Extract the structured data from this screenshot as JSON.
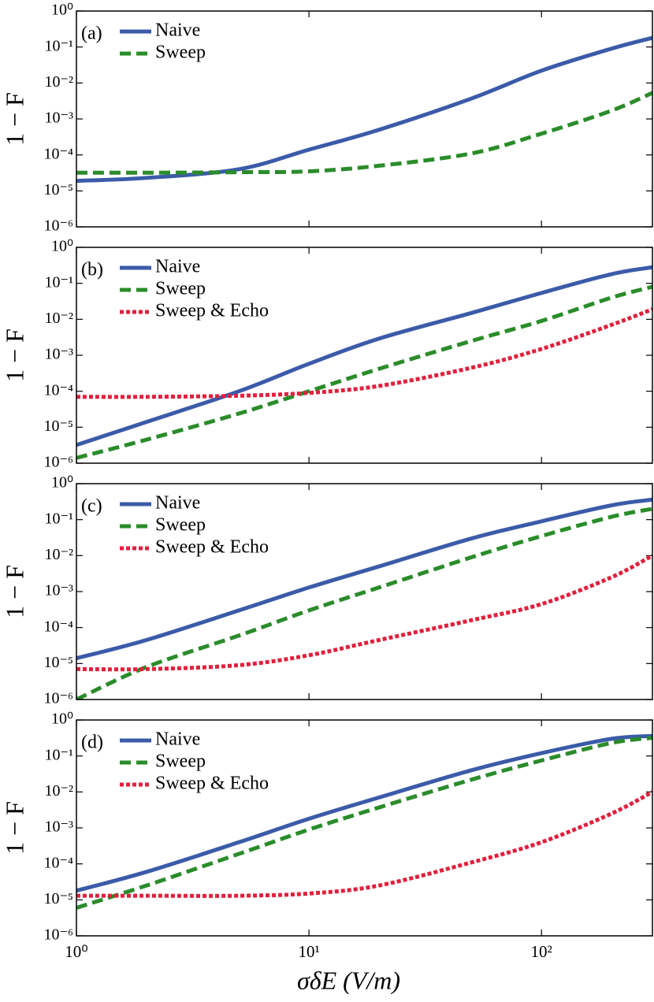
{
  "chart_data": [
    {
      "type": "line",
      "panel_label": "(a)",
      "ylabel": "1 − F",
      "log_x": true,
      "log_y": true,
      "legend": "upper left",
      "x": [
        1,
        2,
        5,
        10,
        20,
        50,
        100,
        200,
        300
      ],
      "series": [
        {
          "name": "Naive",
          "color": "#3b5ba9",
          "style": "solid",
          "values": [
            1.9e-05,
            2.3e-05,
            4e-05,
            0.00014,
            0.0005,
            0.0037,
            0.022,
            0.09,
            0.18
          ]
        },
        {
          "name": "Sweep",
          "color": "#2a8c2a",
          "style": "dashed",
          "values": [
            3.2e-05,
            3.2e-05,
            3.3e-05,
            3.5e-05,
            5e-05,
            0.00011,
            0.00039,
            0.0017,
            0.0053
          ]
        }
      ],
      "xlim": [
        1,
        300
      ],
      "xticks": [
        1,
        10,
        100
      ],
      "ylim": [
        1e-06,
        1
      ],
      "yticks": [
        {
          "value": 1e-06,
          "label": "10⁻⁶"
        },
        {
          "value": 1e-05,
          "label": "10⁻⁵"
        },
        {
          "value": 0.0001,
          "label": "10⁻⁴"
        },
        {
          "value": 0.001,
          "label": "10⁻³"
        },
        {
          "value": 0.01,
          "label": "10⁻²"
        },
        {
          "value": 0.1,
          "label": "10⁻¹"
        },
        {
          "value": 1,
          "label": "10⁰"
        }
      ]
    },
    {
      "type": "line",
      "panel_label": "(b)",
      "ylabel": "1 − F",
      "log_x": true,
      "log_y": true,
      "legend": "upper left",
      "x": [
        1,
        2,
        5,
        10,
        20,
        50,
        100,
        200,
        300
      ],
      "series": [
        {
          "name": "Naive",
          "color": "#3b5ba9",
          "style": "solid",
          "values": [
            3.2e-06,
            1.4e-05,
            0.0001,
            0.00058,
            0.0029,
            0.015,
            0.054,
            0.18,
            0.28
          ]
        },
        {
          "name": "Sweep",
          "color": "#2a8c2a",
          "style": "dashed",
          "values": [
            1.4e-06,
            4.5e-06,
            2.4e-05,
            0.0001,
            0.00042,
            0.0025,
            0.009,
            0.04,
            0.08
          ]
        },
        {
          "name": "Sweep & Echo",
          "color": "#e0203c",
          "style": "dotted",
          "values": [
            7e-05,
            7e-05,
            7.5e-05,
            9e-05,
            0.00014,
            0.00045,
            0.0015,
            0.007,
            0.019
          ]
        }
      ],
      "xlim": [
        1,
        300
      ],
      "xticks": [
        1,
        10,
        100
      ],
      "ylim": [
        1e-06,
        1
      ],
      "yticks": [
        {
          "value": 1e-06,
          "label": "10⁻⁶"
        },
        {
          "value": 1e-05,
          "label": "10⁻⁵"
        },
        {
          "value": 0.0001,
          "label": "10⁻⁴"
        },
        {
          "value": 0.001,
          "label": "10⁻³"
        },
        {
          "value": 0.01,
          "label": "10⁻²"
        },
        {
          "value": 0.1,
          "label": "10⁻¹"
        },
        {
          "value": 1,
          "label": "10⁰"
        }
      ]
    },
    {
      "type": "line",
      "panel_label": "(c)",
      "ylabel": "1 − F",
      "log_x": true,
      "log_y": true,
      "legend": "upper left",
      "x": [
        1,
        2,
        5,
        10,
        20,
        50,
        100,
        200,
        300
      ],
      "series": [
        {
          "name": "Naive",
          "color": "#3b5ba9",
          "style": "solid",
          "values": [
            1.4e-05,
            4.5e-05,
            0.0003,
            0.0013,
            0.005,
            0.03,
            0.09,
            0.25,
            0.36
          ]
        },
        {
          "name": "Sweep",
          "color": "#2a8c2a",
          "style": "dashed",
          "values": [
            1e-06,
            8e-06,
            6e-05,
            0.0003,
            0.0013,
            0.009,
            0.035,
            0.12,
            0.2
          ]
        },
        {
          "name": "Sweep & Echo",
          "color": "#e0203c",
          "style": "dotted",
          "values": [
            7e-06,
            7e-06,
            9e-06,
            1.7e-05,
            4.5e-05,
            0.00016,
            0.00045,
            0.0025,
            0.01
          ]
        }
      ],
      "xlim": [
        1,
        300
      ],
      "xticks": [
        1,
        10,
        100
      ],
      "ylim": [
        1e-06,
        1
      ],
      "yticks": [
        {
          "value": 1e-06,
          "label": "10⁻⁶"
        },
        {
          "value": 1e-05,
          "label": "10⁻⁵"
        },
        {
          "value": 0.0001,
          "label": "10⁻⁴"
        },
        {
          "value": 0.001,
          "label": "10⁻³"
        },
        {
          "value": 0.01,
          "label": "10⁻²"
        },
        {
          "value": 0.1,
          "label": "10⁻¹"
        },
        {
          "value": 1,
          "label": "10⁰"
        }
      ]
    },
    {
      "type": "line",
      "panel_label": "(d)",
      "ylabel": "1 − F",
      "xlabel": "σδE (V/m)",
      "log_x": true,
      "log_y": true,
      "legend": "upper left",
      "x": [
        1,
        2,
        5,
        10,
        20,
        50,
        100,
        200,
        300
      ],
      "series": [
        {
          "name": "Naive",
          "color": "#3b5ba9",
          "style": "solid",
          "values": [
            1.8e-05,
            6e-05,
            0.0004,
            0.0018,
            0.007,
            0.04,
            0.12,
            0.3,
            0.36
          ]
        },
        {
          "name": "Sweep",
          "color": "#2a8c2a",
          "style": "dashed",
          "values": [
            6e-06,
            2.5e-05,
            0.00019,
            0.0009,
            0.0037,
            0.022,
            0.075,
            0.23,
            0.32
          ]
        },
        {
          "name": "Sweep & Echo",
          "color": "#e0203c",
          "style": "dotted",
          "values": [
            1.3e-05,
            1.3e-05,
            1.3e-05,
            1.5e-05,
            2.5e-05,
            0.00011,
            0.0004,
            0.0025,
            0.01
          ]
        }
      ],
      "xlim": [
        1,
        300
      ],
      "xticks": [
        {
          "value": 1,
          "label": "10⁰"
        },
        {
          "value": 10,
          "label": "10¹"
        },
        {
          "value": 100,
          "label": "10²"
        }
      ],
      "ylim": [
        1e-06,
        1
      ],
      "yticks": [
        {
          "value": 1e-06,
          "label": "10⁻⁶"
        },
        {
          "value": 1e-05,
          "label": "10⁻⁵"
        },
        {
          "value": 0.0001,
          "label": "10⁻⁴"
        },
        {
          "value": 0.001,
          "label": "10⁻³"
        },
        {
          "value": 0.01,
          "label": "10⁻²"
        },
        {
          "value": 0.1,
          "label": "10⁻¹"
        },
        {
          "value": 1,
          "label": "10⁰"
        }
      ]
    }
  ]
}
